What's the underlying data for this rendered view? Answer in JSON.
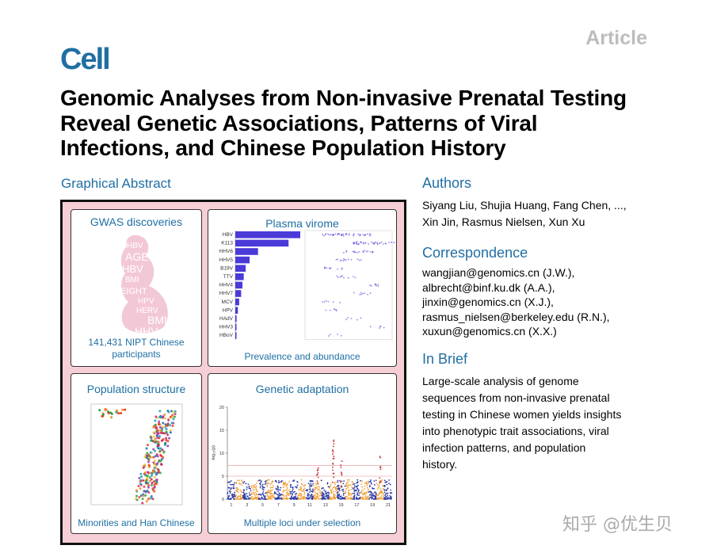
{
  "header": {
    "article_tag": "Article",
    "journal_logo": "Cell",
    "title": "Genomic Analyses from Non-invasive Prenatal Testing Reveal Genetic Associations, Patterns of Viral Infections, and Chinese Population History"
  },
  "graphical_abstract": {
    "heading": "Graphical Abstract",
    "gwas": {
      "title": "GWAS discoveries",
      "caption_line1": "141,431 NIPT Chinese",
      "caption_line2": "participants",
      "words": [
        "HBV",
        "AGE",
        "HBV",
        "BMI",
        "HEIGHT",
        "HPV",
        "HERV",
        "BMI",
        "HHV",
        "HBV"
      ]
    },
    "virome": {
      "title": "Plasma virome",
      "caption": "Prevalence and abundance",
      "viruses": [
        "HBV",
        "K113",
        "HHV6",
        "HHV5",
        "B19V",
        "TTV",
        "HHV4",
        "HHV7",
        "MCV",
        "HPV",
        "HAdV",
        "HHV3",
        "HBoV"
      ],
      "prevalence": [
        1.0,
        0.82,
        0.35,
        0.22,
        0.16,
        0.13,
        0.11,
        0.09,
        0.06,
        0.04,
        0.02,
        0.015,
        0.01
      ]
    },
    "population": {
      "title": "Population structure",
      "caption": "Minorities and Han Chinese"
    },
    "adaptation": {
      "title": "Genetic adaptation",
      "caption": "Multiple loci under selection",
      "ylabel": "-log₁₀(p)",
      "y_ticks": [
        "0",
        "5",
        "10",
        "15",
        "20"
      ],
      "chromosomes": [
        "1",
        "2",
        "3",
        "4",
        "5",
        "6",
        "7",
        "8",
        "9",
        "10",
        "11",
        "12",
        "13",
        "14",
        "15",
        "16",
        "17",
        "18",
        "19",
        "20",
        "21"
      ],
      "chr_labels_shown": [
        "1",
        "3",
        "5",
        "7",
        "9",
        "11",
        "13",
        "15",
        "17",
        "19",
        "21"
      ]
    }
  },
  "authors": {
    "heading": "Authors",
    "line1": "Siyang Liu, Shujia Huang, Fang Chen, ...,",
    "line2": "Xin Jin, Rasmus Nielsen, Xun Xu"
  },
  "correspondence": {
    "heading": "Correspondence",
    "emails": [
      "wangjian@genomics.cn (J.W.),",
      "albrecht@binf.ku.dk (A.A.),",
      "jinxin@genomics.cn (X.J.),",
      "rasmus_nielsen@berkeley.edu (R.N.),",
      "xuxun@genomics.cn (X.X.)"
    ]
  },
  "in_brief": {
    "heading": "In Brief",
    "lines": [
      "Large-scale analysis of genome",
      "sequences from non-invasive prenatal",
      "testing in Chinese women yields insights",
      "into phenotypic trait associations, viral",
      "infection patterns, and population",
      "history."
    ]
  },
  "watermark": "知乎 @优生贝",
  "colors": {
    "accent": "#1f6fa3",
    "abstract_bg": "#f6cfd6",
    "virome_bar": "#4a3ad8",
    "manhattan_a": "#2b3aa8",
    "manhattan_b": "#f2a23a"
  }
}
